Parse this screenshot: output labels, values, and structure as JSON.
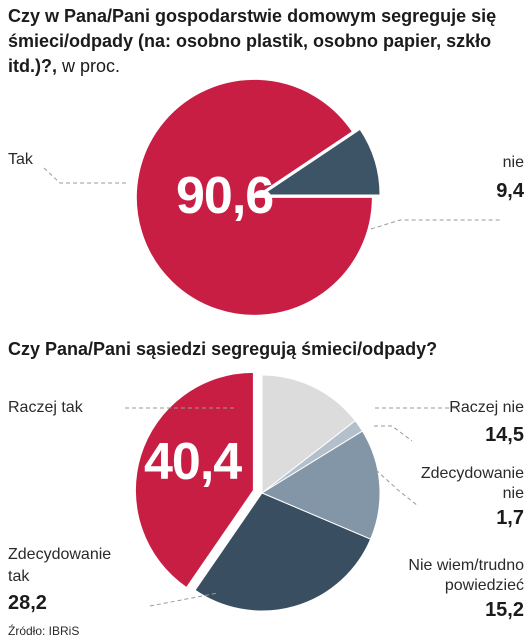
{
  "chart_data": [
    {
      "type": "pie",
      "title": "Czy w Pana/Pani gospodarstwie domowym segreguje się śmieci/odpady (na: osobno plastik, osobno papier, szkło itd.)?,",
      "unit": "w proc.",
      "slices": [
        {
          "label": "Tak",
          "value": 90.6,
          "value_text": "90,6",
          "color": "#c81e44"
        },
        {
          "label": "nie",
          "value": 9.4,
          "value_text": "9,4",
          "color": "#3d5366"
        }
      ]
    },
    {
      "type": "pie",
      "title": "Czy Pana/Pani sąsiedzi segregują śmieci/odpady?",
      "slices": [
        {
          "label": "Raczej nie",
          "value": 14.5,
          "value_text": "14,5",
          "color": "#dcdcdc"
        },
        {
          "label": "Zdecydowanie nie",
          "value": 1.7,
          "value_text": "1,7",
          "color": "#b3c0cc"
        },
        {
          "label": "Nie wiem/trudno powiedzieć",
          "value": 15.2,
          "value_text": "15,2",
          "color": "#8396a8"
        },
        {
          "label": "Zdecydowanie tak",
          "value": 28.2,
          "value_text": "28,2",
          "color": "#3a4e61"
        },
        {
          "label": "Raczej tak",
          "value": 40.4,
          "value_text": "40,4",
          "color": "#c81e44"
        }
      ]
    }
  ],
  "labels": {
    "q1_unit": "w proc.",
    "q2_raczej_tak": "Raczej tak",
    "q2_zdec_nie_1": "Zdecydowanie",
    "q2_zdec_nie_2": "nie",
    "q2_nie_wiem_1": "Nie wiem/trudno",
    "q2_nie_wiem_2": "powiedzieć",
    "q2_zdec_tak_1": "Zdecydowanie",
    "q2_zdec_tak_2": "tak"
  },
  "source": "Źródło: IBRiS"
}
